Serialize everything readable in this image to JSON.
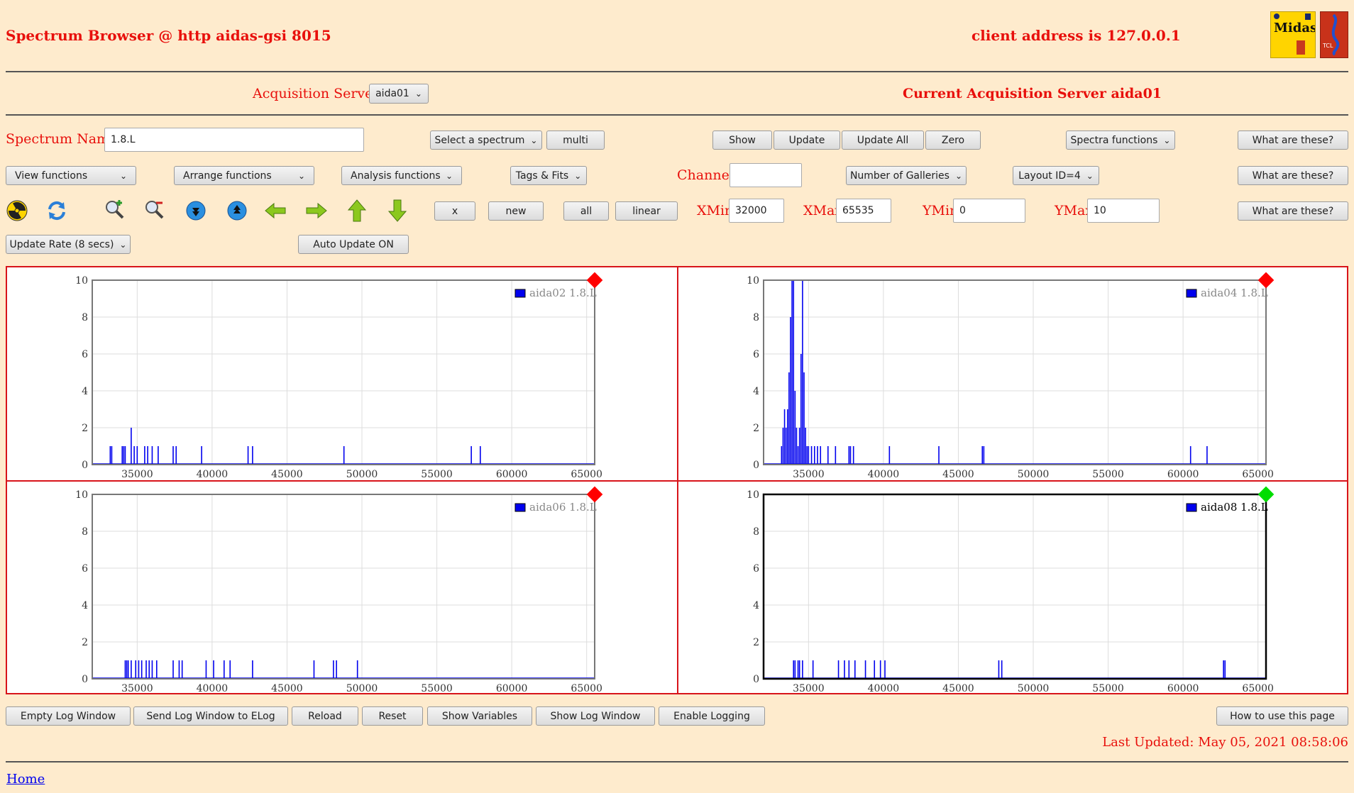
{
  "header": {
    "title": "Spectrum Browser @ http aidas-gsi 8015",
    "client_address": "client address is 127.0.0.1"
  },
  "acquisition": {
    "label": "Acquisition Servers",
    "selected": "aida01",
    "current": "Current Acquisition Server aida01"
  },
  "row1": {
    "spectrum_label": "Spectrum Name:",
    "spectrum_value": "1.8.L",
    "select_spectrum": "Select a spectrum",
    "multi": "multi",
    "show": "Show",
    "update": "Update",
    "update_all": "Update All",
    "zero": "Zero",
    "spectra_functions": "Spectra functions",
    "what": "What are these?"
  },
  "row2": {
    "view": "View functions",
    "arrange": "Arrange functions",
    "analysis": "Analysis functions",
    "tags": "Tags & Fits",
    "channel_label": "Channel:",
    "channel_value": "",
    "galleries": "Number of Galleries",
    "layout": "Layout ID=4",
    "what": "What are these?"
  },
  "row3": {
    "x": "x",
    "new": "new",
    "all": "all",
    "linear": "linear",
    "xmin_label": "XMin",
    "xmin": "32000",
    "xmax_label": "XMax",
    "xmax": "65535",
    "ymin_label": "YMin",
    "ymin": "0",
    "ymax_label": "YMax",
    "ymax": "10",
    "what": "What are these?",
    "icons": [
      "radiation-icon",
      "refresh-icon",
      "zoom-in-icon",
      "zoom-out-icon",
      "expand-down-icon",
      "expand-up-icon",
      "arrow-left-icon",
      "arrow-right-icon",
      "arrow-up-icon",
      "arrow-down-icon"
    ]
  },
  "row4": {
    "update_rate": "Update Rate (8 secs)",
    "auto_update": "Auto Update ON"
  },
  "chart_data": [
    {
      "type": "line",
      "legend": "aida02 1.8.L",
      "active": false,
      "xlim": [
        32000,
        65535
      ],
      "ylim": [
        0,
        10
      ],
      "xticks": [
        35000,
        40000,
        45000,
        50000,
        55000,
        60000,
        65000
      ],
      "yticks": [
        0,
        2,
        4,
        6,
        8,
        10
      ],
      "spikes": [
        [
          33200,
          1
        ],
        [
          33300,
          1
        ],
        [
          34000,
          1
        ],
        [
          34100,
          1
        ],
        [
          34200,
          1
        ],
        [
          34600,
          2
        ],
        [
          34800,
          1
        ],
        [
          35000,
          1
        ],
        [
          35500,
          1
        ],
        [
          35700,
          1
        ],
        [
          36000,
          1
        ],
        [
          36400,
          1
        ],
        [
          37400,
          1
        ],
        [
          37600,
          1
        ],
        [
          39300,
          1
        ],
        [
          42400,
          1
        ],
        [
          42700,
          1
        ],
        [
          48800,
          1
        ],
        [
          57300,
          1
        ],
        [
          57900,
          1
        ]
      ]
    },
    {
      "type": "line",
      "legend": "aida04 1.8.L",
      "active": false,
      "xlim": [
        32000,
        65535
      ],
      "ylim": [
        0,
        10
      ],
      "xticks": [
        35000,
        40000,
        45000,
        50000,
        55000,
        60000,
        65000
      ],
      "yticks": [
        0,
        2,
        4,
        6,
        8,
        10
      ],
      "spikes": [
        [
          33200,
          1
        ],
        [
          33300,
          2
        ],
        [
          33400,
          3
        ],
        [
          33500,
          2
        ],
        [
          33600,
          3
        ],
        [
          33700,
          5
        ],
        [
          33800,
          8
        ],
        [
          33900,
          10
        ],
        [
          34000,
          10
        ],
        [
          34100,
          4
        ],
        [
          34200,
          2
        ],
        [
          34300,
          1
        ],
        [
          34400,
          2
        ],
        [
          34500,
          6
        ],
        [
          34600,
          10
        ],
        [
          34700,
          5
        ],
        [
          34800,
          2
        ],
        [
          34900,
          1
        ],
        [
          35000,
          1
        ],
        [
          35200,
          1
        ],
        [
          35400,
          1
        ],
        [
          35600,
          1
        ],
        [
          35800,
          1
        ],
        [
          36300,
          1
        ],
        [
          36800,
          1
        ],
        [
          37700,
          1
        ],
        [
          37800,
          1
        ],
        [
          38000,
          1
        ],
        [
          40400,
          1
        ],
        [
          43700,
          1
        ],
        [
          46600,
          1
        ],
        [
          46700,
          1
        ],
        [
          60500,
          1
        ],
        [
          61600,
          1
        ]
      ]
    },
    {
      "type": "line",
      "legend": "aida06 1.8.L",
      "active": false,
      "xlim": [
        32000,
        65535
      ],
      "ylim": [
        0,
        10
      ],
      "xticks": [
        35000,
        40000,
        45000,
        50000,
        55000,
        60000,
        65000
      ],
      "yticks": [
        0,
        2,
        4,
        6,
        8,
        10
      ],
      "spikes": [
        [
          34200,
          1
        ],
        [
          34300,
          1
        ],
        [
          34400,
          1
        ],
        [
          34600,
          1
        ],
        [
          34900,
          1
        ],
        [
          35100,
          1
        ],
        [
          35300,
          1
        ],
        [
          35600,
          1
        ],
        [
          35800,
          1
        ],
        [
          36000,
          1
        ],
        [
          36300,
          1
        ],
        [
          37400,
          1
        ],
        [
          37800,
          1
        ],
        [
          38000,
          1
        ],
        [
          39600,
          1
        ],
        [
          40100,
          1
        ],
        [
          40800,
          1
        ],
        [
          41200,
          1
        ],
        [
          42700,
          1
        ],
        [
          46800,
          1
        ],
        [
          48100,
          1
        ],
        [
          48300,
          1
        ],
        [
          49700,
          1
        ]
      ]
    },
    {
      "type": "line",
      "legend": "aida08 1.8.L",
      "active": true,
      "xlim": [
        32000,
        65535
      ],
      "ylim": [
        0,
        10
      ],
      "xticks": [
        35000,
        40000,
        45000,
        50000,
        55000,
        60000,
        65000
      ],
      "yticks": [
        0,
        2,
        4,
        6,
        8,
        10
      ],
      "spikes": [
        [
          34000,
          1
        ],
        [
          34100,
          1
        ],
        [
          34300,
          1
        ],
        [
          34400,
          1
        ],
        [
          34600,
          1
        ],
        [
          35300,
          1
        ],
        [
          37000,
          1
        ],
        [
          37400,
          1
        ],
        [
          37700,
          1
        ],
        [
          38100,
          1
        ],
        [
          38800,
          1
        ],
        [
          39400,
          1
        ],
        [
          39800,
          1
        ],
        [
          40100,
          1
        ],
        [
          47700,
          1
        ],
        [
          47900,
          1
        ],
        [
          62700,
          1
        ],
        [
          62800,
          1
        ]
      ]
    }
  ],
  "footer": {
    "buttons": [
      "Empty Log Window",
      "Send Log Window to ELog",
      "Reload",
      "Reset",
      "Show Variables",
      "Show Log Window",
      "Enable Logging"
    ],
    "how_to": "How to use this page",
    "last_updated": "Last Updated: May 05, 2021 08:58:06",
    "home": "Home"
  },
  "colors": {
    "background": "#feebcd",
    "accent": "#e8100c",
    "trace": "#0000ee",
    "marker_inactive": "#ff0000",
    "marker_active": "#00dd00"
  }
}
